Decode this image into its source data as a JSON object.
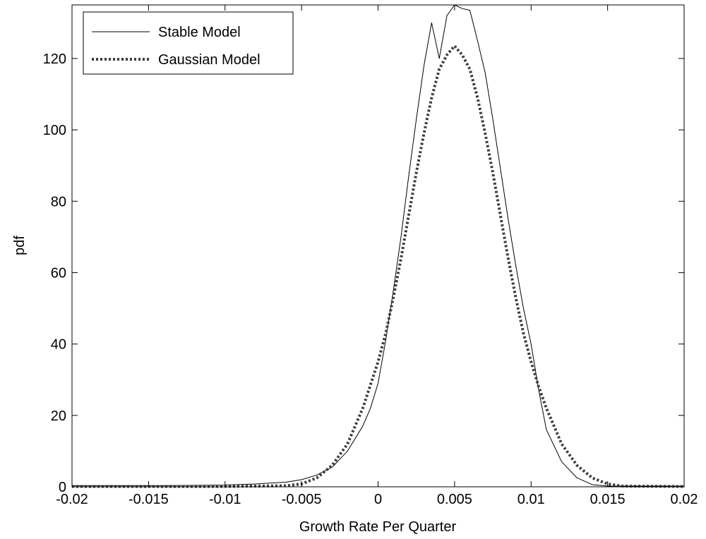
{
  "chart_data": {
    "type": "line",
    "xlabel": "Growth Rate Per Quarter",
    "ylabel": "pdf",
    "xlim": [
      -0.02,
      0.02
    ],
    "ylim": [
      0,
      135
    ],
    "x_ticks": [
      -0.02,
      -0.015,
      -0.01,
      -0.005,
      0,
      0.005,
      0.01,
      0.015,
      0.02
    ],
    "x_tick_labels": [
      "-0.02",
      "-0.015",
      "-0.01",
      "-0.005",
      "0",
      "0.005",
      "0.01",
      "0.015",
      "0.02"
    ],
    "y_ticks": [
      0,
      20,
      40,
      60,
      80,
      100,
      120
    ],
    "y_tick_labels": [
      "0",
      "20",
      "40",
      "60",
      "80",
      "100",
      "120"
    ],
    "grid": false,
    "legend": {
      "placement": "top-left"
    },
    "series": [
      {
        "name": "Stable Model",
        "style": "solid",
        "color": "#000000",
        "x": [
          -0.02,
          -0.015,
          -0.01,
          -0.008,
          -0.006,
          -0.005,
          -0.004,
          -0.003,
          -0.002,
          -0.001,
          -0.0005,
          0,
          0.0005,
          0.001,
          0.0015,
          0.002,
          0.0025,
          0.003,
          0.0035,
          0.004,
          0.0045,
          0.005,
          0.0055,
          0.006,
          0.0065,
          0.007,
          0.0075,
          0.008,
          0.0085,
          0.009,
          0.0095,
          0.01,
          0.0105,
          0.011,
          0.012,
          0.013,
          0.014,
          0.015,
          0.02
        ],
        "y": [
          0.3,
          0.3,
          0.5,
          0.8,
          1.3,
          2.0,
          3.3,
          5.5,
          10.0,
          17.0,
          22.0,
          29.0,
          41.0,
          55.0,
          70.0,
          87.0,
          103.0,
          118.0,
          130.0,
          120.0,
          132.0,
          135.0,
          134.0,
          133.5,
          125.0,
          116.0,
          103.0,
          89.0,
          75.0,
          62.0,
          50.0,
          40.0,
          27.0,
          16.0,
          7.0,
          2.5,
          0.6,
          0.2,
          0.2
        ]
      },
      {
        "name": "Gaussian Model",
        "style": "dotted",
        "color": "#3c3c3c",
        "x": [
          -0.02,
          -0.015,
          -0.01,
          -0.006,
          -0.005,
          -0.004,
          -0.003,
          -0.002,
          -0.001,
          0,
          0.0005,
          0.001,
          0.0015,
          0.002,
          0.0025,
          0.003,
          0.0035,
          0.004,
          0.0045,
          0.005,
          0.0055,
          0.006,
          0.0065,
          0.007,
          0.0075,
          0.008,
          0.0085,
          0.009,
          0.0095,
          0.01,
          0.0105,
          0.011,
          0.0115,
          0.012,
          0.013,
          0.014,
          0.015,
          0.016,
          0.02
        ],
        "y": [
          0.1,
          0.1,
          0.1,
          0.3,
          0.8,
          2.5,
          6.0,
          12.0,
          22.0,
          35.0,
          43.0,
          53.0,
          64.0,
          76.0,
          88.0,
          99.0,
          109.0,
          117.0,
          121.0,
          123.5,
          121.0,
          117.0,
          109.0,
          99.0,
          88.0,
          76.0,
          64.0,
          53.0,
          43.0,
          35.0,
          28.0,
          22.0,
          17.0,
          12.0,
          6.0,
          2.5,
          0.8,
          0.2,
          0.1
        ]
      }
    ]
  }
}
